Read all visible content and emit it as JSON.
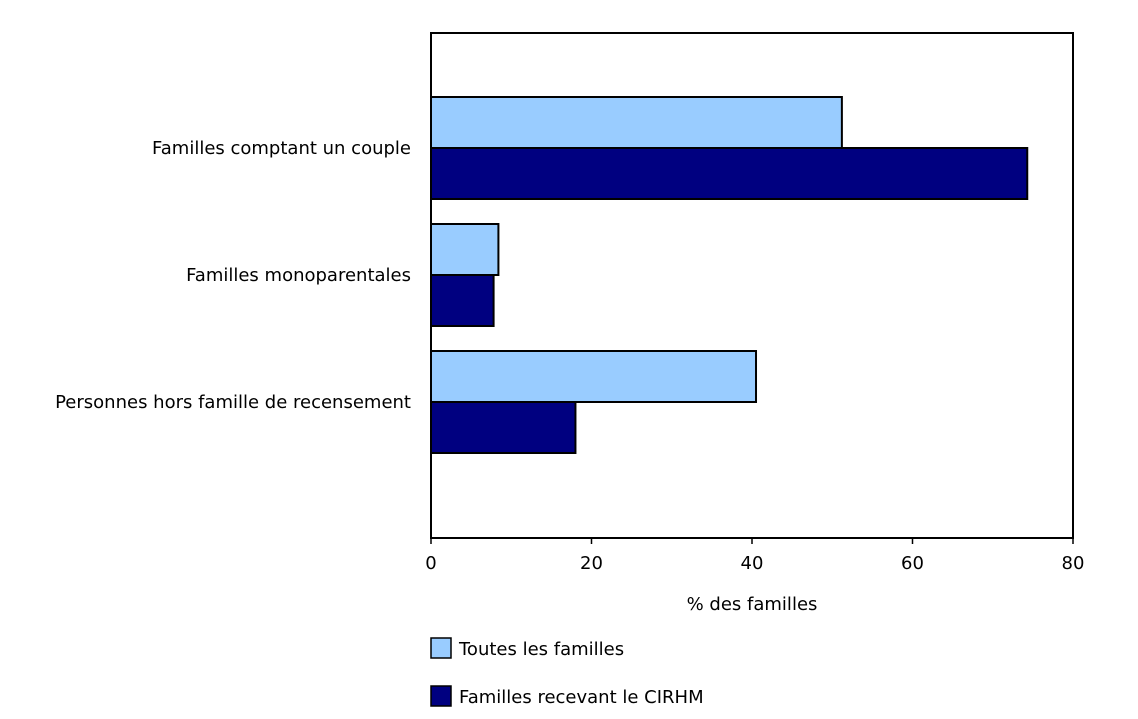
{
  "chart_data": {
    "type": "bar",
    "orientation": "horizontal",
    "title": "",
    "categories": [
      "Familles comptant un couple",
      "Familles monoparentales",
      "Personnes hors famille de recensement"
    ],
    "series": [
      {
        "name": "Toutes les familles",
        "color": "#99CCFF",
        "values": [
          51.2,
          8.4,
          40.5
        ]
      },
      {
        "name": "Familles recevant le CIRHM",
        "color": "#000080",
        "values": [
          74.3,
          7.8,
          18.0
        ]
      }
    ],
    "xlabel": "% des familles",
    "ylabel": "",
    "xlim": [
      0,
      80
    ],
    "xticks": [
      0,
      20,
      40,
      60,
      80
    ],
    "grid": false,
    "legend_position": "bottom"
  }
}
